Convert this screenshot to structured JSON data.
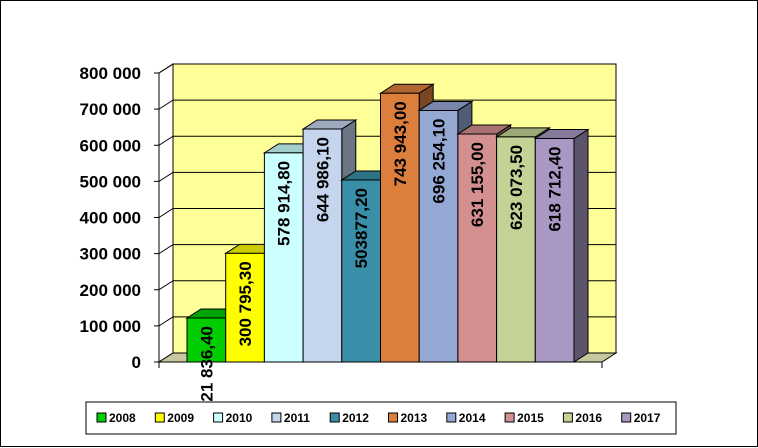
{
  "chart_data": {
    "type": "bar",
    "title": "",
    "xlabel": "",
    "ylabel": "",
    "ylim": [
      0,
      800000
    ],
    "y_ticks": [
      "0",
      "100 000",
      "200 000",
      "300 000",
      "400 000",
      "500 000",
      "600 000",
      "700 000",
      "800 000"
    ],
    "grid": true,
    "legend_position": "bottom",
    "background_color": "#ffff99",
    "categories": [
      "2008",
      "2009",
      "2010",
      "2011",
      "2012",
      "2013",
      "2014",
      "2015",
      "2016",
      "2017"
    ],
    "values": [
      121836.4,
      300795.3,
      578914.8,
      644986.1,
      503877.2,
      743943.0,
      696254.1,
      631155.0,
      623073.5,
      618712.4
    ],
    "labels": [
      "121 836,40",
      "300 795,30",
      "578 914,80",
      "644 986,10",
      "503877,20",
      "743 943,00",
      "696 254,10",
      "631 155,00",
      "623 073,50",
      "618 712,40"
    ],
    "colors": [
      "#00cc00",
      "#ffff00",
      "#ccffff",
      "#c5d5ee",
      "#3a8fa8",
      "#dc7f3c",
      "#95a8d4",
      "#d49090",
      "#c3d395",
      "#a898c3"
    ]
  }
}
